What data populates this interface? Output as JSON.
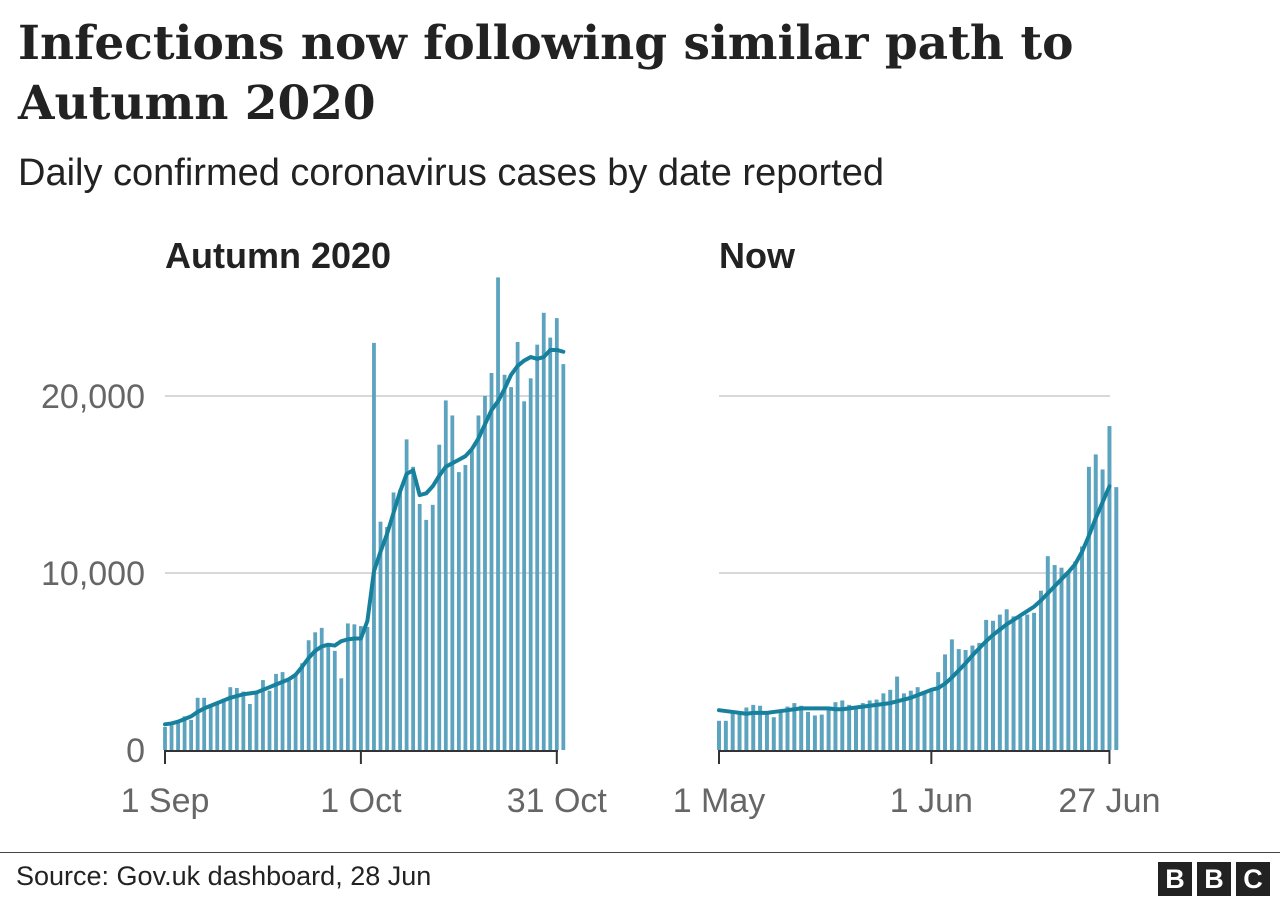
{
  "title": "Infections now following similar path to Autumn 2020",
  "subtitle": "Daily confirmed coronavirus cases by date reported",
  "source": "Source: Gov.uk dashboard, 28 Jun",
  "logo": [
    "B",
    "B",
    "C"
  ],
  "colors": {
    "bar": "#5ba3be",
    "line": "#17819d",
    "grid": "#cccccc",
    "axis": "#333333",
    "text": "#222222",
    "tick_text": "#666666"
  },
  "chart_data": [
    {
      "type": "bar",
      "panel_title": "Autumn 2020",
      "ylim": [
        0,
        27000
      ],
      "y_ticks": [
        0,
        10000,
        20000
      ],
      "y_tick_labels": [
        "0",
        "10,000",
        "20,000"
      ],
      "x_tick_labels": [
        "1 Sep",
        "1 Oct",
        "31 Oct"
      ],
      "x_tick_indices": [
        0,
        30,
        60
      ],
      "series": [
        {
          "kind": "bar",
          "values": [
            1300,
            1400,
            1700,
            1900,
            1700,
            2950,
            2950,
            2450,
            2600,
            2900,
            3550,
            3500,
            3300,
            2600,
            3200,
            3950,
            3350,
            4300,
            4400,
            3900,
            4300,
            4900,
            6200,
            6650,
            6900,
            5900,
            5600,
            4050,
            7150,
            7100,
            7000,
            6950,
            23000,
            12900,
            12600,
            14550,
            14700,
            17550,
            16000,
            13900,
            13000,
            13850,
            17250,
            19750,
            18900,
            15700,
            16100,
            16900,
            18900,
            20000,
            21300,
            26700,
            21200,
            20500,
            23050,
            19700,
            21000,
            22900,
            24700,
            23300,
            24400,
            21800
          ],
          "x_start": 0
        },
        {
          "kind": "line",
          "values": [
            1450,
            1500,
            1600,
            1750,
            1900,
            2150,
            2350,
            2500,
            2650,
            2800,
            2950,
            3050,
            3150,
            3200,
            3250,
            3400,
            3550,
            3700,
            3850,
            4000,
            4250,
            4700,
            5200,
            5600,
            5850,
            5950,
            5900,
            6150,
            6250,
            6300,
            6300,
            7300,
            10100,
            11200,
            12200,
            13400,
            14600,
            15600,
            15800,
            14400,
            14500,
            14900,
            15500,
            16000,
            16200,
            16400,
            16600,
            17000,
            17600,
            18400,
            19200,
            19700,
            20400,
            21200,
            21700,
            22000,
            22200,
            22100,
            22200,
            22600,
            22600,
            22500
          ],
          "x_start": 0
        }
      ]
    },
    {
      "type": "bar",
      "panel_title": "Now",
      "ylim": [
        0,
        27000
      ],
      "y_ticks": [
        0,
        10000,
        20000
      ],
      "x_tick_labels": [
        "1 May",
        "1 Jun",
        "27 Jun"
      ],
      "x_tick_indices": [
        0,
        31,
        57
      ],
      "series": [
        {
          "kind": "bar",
          "values": [
            1950,
            1650,
            1650,
            2150,
            2050,
            2400,
            2550,
            2500,
            2150,
            1850,
            2250,
            2450,
            2650,
            2500,
            2150,
            1950,
            2000,
            2450,
            2700,
            2800,
            2550,
            2400,
            2650,
            2800,
            2850,
            3200,
            3400,
            4150,
            3200,
            3350,
            3550,
            3200,
            3300,
            4400,
            5400,
            6250,
            5700,
            5650,
            5900,
            6050,
            7350,
            7300,
            7650,
            7950,
            7550,
            7500,
            7650,
            7750,
            9000,
            10950,
            10450,
            10300,
            10050,
            10650,
            11500,
            16000,
            16700,
            15850,
            18300,
            14850
          ],
          "x_start": -1
        },
        {
          "kind": "line",
          "values": [
            2250,
            2200,
            2150,
            2100,
            2050,
            2100,
            2100,
            2100,
            2150,
            2200,
            2250,
            2300,
            2350,
            2350,
            2350,
            2350,
            2350,
            2300,
            2300,
            2350,
            2400,
            2450,
            2500,
            2550,
            2600,
            2650,
            2750,
            2850,
            2950,
            3100,
            3250,
            3400,
            3500,
            3750,
            4100,
            4500,
            4900,
            5350,
            5750,
            6150,
            6500,
            6800,
            7100,
            7350,
            7600,
            7850,
            8100,
            8450,
            8850,
            9250,
            9650,
            10050,
            10500,
            11200,
            12100,
            13100,
            14000,
            14900
          ],
          "x_start": 0
        }
      ]
    }
  ]
}
